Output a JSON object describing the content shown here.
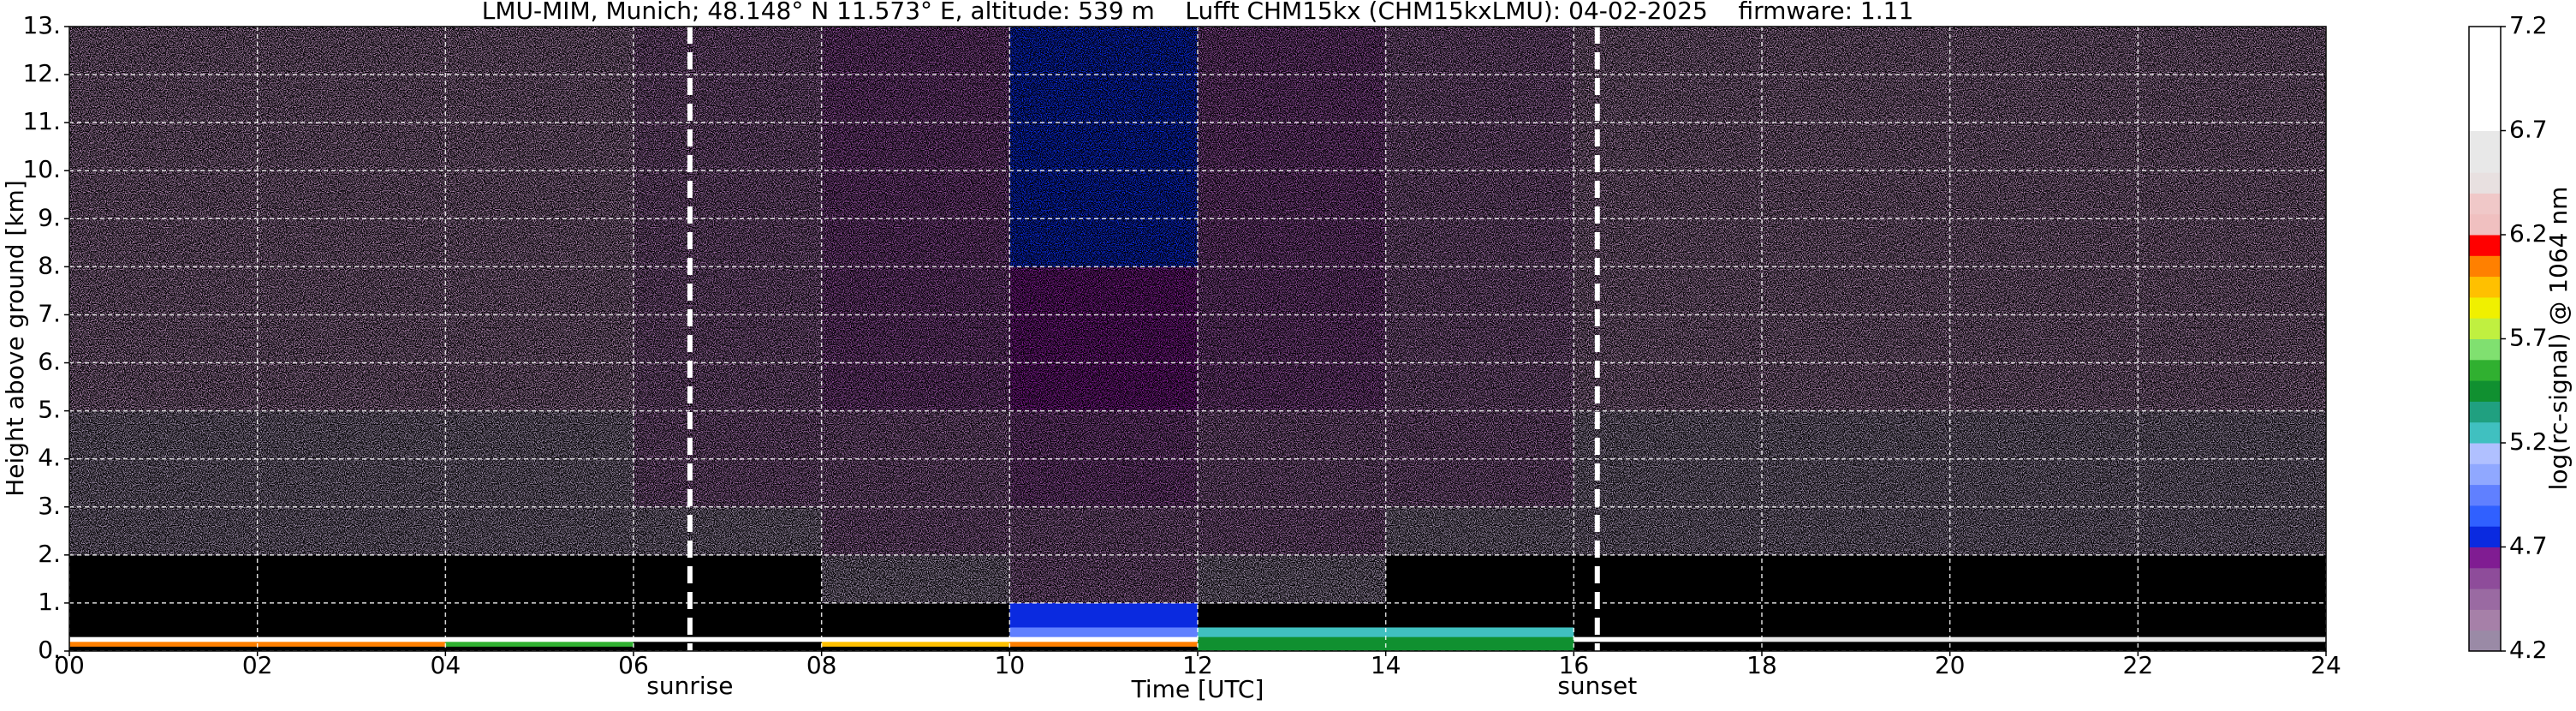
{
  "chart_data": {
    "type": "heatmap",
    "title": "LMU-MIM, Munich; 48.148° N 11.573° E, altitude: 539 m    Lufft CHM15kx (CHM15kxLMU): 04-02-2025    firmware: 1.11",
    "x_label": "Time [UTC]",
    "y_label": "Height above ground [km]",
    "x_edges": [
      0,
      2,
      4,
      6,
      8,
      10,
      12,
      14,
      16,
      18,
      20,
      22,
      24
    ],
    "y_edges": [
      0,
      0.1,
      0.2,
      0.3,
      0.5,
      1,
      2,
      3,
      5,
      8,
      13
    ],
    "z": [
      [
        4.1,
        4.1,
        4.1,
        4.1,
        4.1,
        4.1,
        5.4,
        5.4,
        4.1,
        4.1,
        4.1,
        4.1
      ],
      [
        6.1,
        6.0,
        5.6,
        4.1,
        5.9,
        6.0,
        5.4,
        5.4,
        4.1,
        4.1,
        4.1,
        4.1
      ],
      [
        6.9,
        6.9,
        6.8,
        6.8,
        6.9,
        6.9,
        5.5,
        5.5,
        6.8,
        6.6,
        6.6,
        6.6
      ],
      [
        4.1,
        4.1,
        4.1,
        4.1,
        4.1,
        5.0,
        5.3,
        5.3,
        4.1,
        4.1,
        4.1,
        4.1
      ],
      [
        4.1,
        4.1,
        4.1,
        4.1,
        4.1,
        4.75,
        4.1,
        4.1,
        4.1,
        4.1,
        4.1,
        4.1
      ],
      [
        4.1,
        4.1,
        4.1,
        4.1,
        4.3,
        4.4,
        4.3,
        4.1,
        4.1,
        4.1,
        4.1,
        4.1
      ],
      [
        4.25,
        4.25,
        4.25,
        4.3,
        4.4,
        4.5,
        4.4,
        4.3,
        4.25,
        4.25,
        4.25,
        4.25
      ],
      [
        4.3,
        4.3,
        4.3,
        4.4,
        4.5,
        4.6,
        4.5,
        4.4,
        4.3,
        4.3,
        4.3,
        4.3
      ],
      [
        4.35,
        4.35,
        4.35,
        4.45,
        4.55,
        4.65,
        4.55,
        4.45,
        4.35,
        4.35,
        4.35,
        4.35
      ],
      [
        4.35,
        4.35,
        4.35,
        4.45,
        4.6,
        4.7,
        4.6,
        4.45,
        4.35,
        4.35,
        4.35,
        4.35
      ]
    ],
    "below_color": "#000000",
    "xlim": [
      0,
      24
    ],
    "ylim": [
      0,
      13
    ],
    "xticks": [
      {
        "value": 0,
        "label": "00"
      },
      {
        "value": 2,
        "label": "02"
      },
      {
        "value": 4,
        "label": "04"
      },
      {
        "value": 6,
        "label": "06"
      },
      {
        "value": 8,
        "label": "08"
      },
      {
        "value": 10,
        "label": "10"
      },
      {
        "value": 12,
        "label": "12"
      },
      {
        "value": 14,
        "label": "14"
      },
      {
        "value": 16,
        "label": "16"
      },
      {
        "value": 18,
        "label": "18"
      },
      {
        "value": 20,
        "label": "20"
      },
      {
        "value": 22,
        "label": "22"
      },
      {
        "value": 24,
        "label": "24"
      }
    ],
    "yticks": [
      {
        "value": 0,
        "label": "0."
      },
      {
        "value": 1,
        "label": "1."
      },
      {
        "value": 2,
        "label": "2."
      },
      {
        "value": 3,
        "label": "3."
      },
      {
        "value": 4,
        "label": "4."
      },
      {
        "value": 5,
        "label": "5."
      },
      {
        "value": 6,
        "label": "6."
      },
      {
        "value": 7,
        "label": "7."
      },
      {
        "value": 8,
        "label": "8."
      },
      {
        "value": 9,
        "label": "9."
      },
      {
        "value": 10,
        "label": "10."
      },
      {
        "value": 11,
        "label": "11."
      },
      {
        "value": 12,
        "label": "12."
      },
      {
        "value": 13,
        "label": "13."
      }
    ],
    "grid": true,
    "annotations": [
      {
        "x": 6.6,
        "label": "sunrise"
      },
      {
        "x": 16.25,
        "label": "sunset"
      }
    ],
    "colorbar": {
      "label": "log(rc-signal) @ 1064 nm",
      "zlim": [
        4.2,
        7.2
      ],
      "ticks": [
        4.2,
        4.7,
        5.2,
        5.7,
        6.2,
        6.7,
        7.2
      ],
      "colors": [
        "#9a8aa6",
        "#a680a8",
        "#9a6aa2",
        "#8e4c9a",
        "#801c92",
        "#0a2ae0",
        "#3060ff",
        "#6080ff",
        "#90a8ff",
        "#b0c0ff",
        "#40c0c0",
        "#20a080",
        "#109030",
        "#30b030",
        "#80e070",
        "#c0f040",
        "#f0f000",
        "#ffc000",
        "#ff8000",
        "#ff0000",
        "#f0c0c0",
        "#f0c8c8",
        "#e8e0e0",
        "#e8e8e8",
        "#e8e8e8",
        "#ffffff",
        "#ffffff",
        "#ffffff",
        "#ffffff",
        "#ffffff"
      ]
    }
  }
}
